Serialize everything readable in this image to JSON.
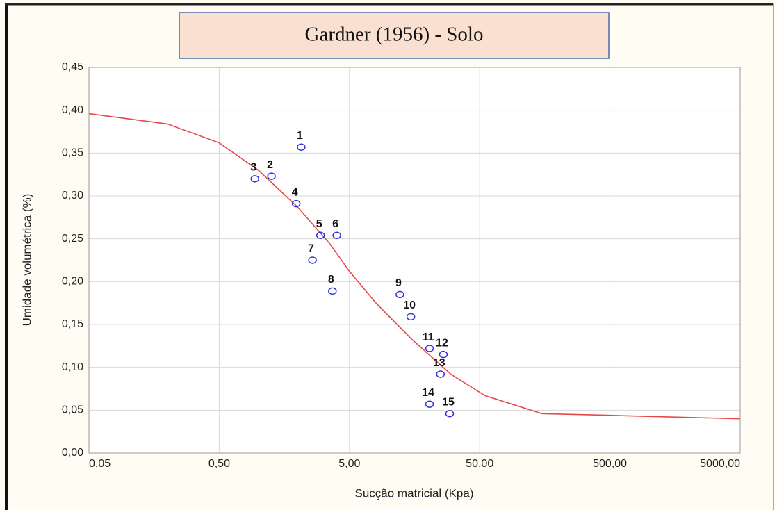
{
  "chart_data": {
    "type": "scatter",
    "title": "Gardner (1956) - Solo",
    "x_label": "Sucção matricial (Kpa)",
    "y_label": "Umidade volumétrica (%)",
    "xscale": "log",
    "xlim": [
      0.05,
      5000
    ],
    "ylim": [
      0,
      0.45
    ],
    "xticks": [
      {
        "value": 0.05,
        "label": "0,05"
      },
      {
        "value": 0.5,
        "label": "0,50"
      },
      {
        "value": 5,
        "label": "5,00"
      },
      {
        "value": 50,
        "label": "50,00"
      },
      {
        "value": 500,
        "label": "500,00"
      },
      {
        "value": 5000,
        "label": "5000,00"
      }
    ],
    "yticks": [
      {
        "value": 0,
        "label": "0,00"
      },
      {
        "value": 0.05,
        "label": "0,05"
      },
      {
        "value": 0.1,
        "label": "0,10"
      },
      {
        "value": 0.15,
        "label": "0,15"
      },
      {
        "value": 0.2,
        "label": "0,20"
      },
      {
        "value": 0.25,
        "label": "0,25"
      },
      {
        "value": 0.3,
        "label": "0,30"
      },
      {
        "value": 0.35,
        "label": "0,35"
      },
      {
        "value": 0.4,
        "label": "0,40"
      },
      {
        "value": 0.45,
        "label": "0,45"
      }
    ],
    "grid": true,
    "series": [
      {
        "type": "scatter",
        "color": "#2f2fe0",
        "labels": [
          "1",
          "2",
          "3",
          "4",
          "5",
          "6",
          "7",
          "8",
          "9",
          "10",
          "11",
          "12",
          "13",
          "14",
          "15"
        ],
        "x": [
          2.13,
          1.26,
          0.94,
          1.95,
          3.0,
          4.0,
          2.6,
          3.7,
          12.2,
          14.8,
          20.6,
          26.3,
          25,
          20.6,
          29.4
        ],
        "values": [
          0.357,
          0.323,
          0.32,
          0.291,
          0.254,
          0.254,
          0.225,
          0.189,
          0.185,
          0.159,
          0.122,
          0.115,
          0.092,
          0.057,
          0.046
        ]
      },
      {
        "type": "line",
        "color": "#e8474a",
        "x": [
          0.05,
          0.2,
          0.5,
          1,
          2,
          3.5,
          5,
          8,
          15,
          30,
          55,
          150,
          500,
          5000
        ],
        "values": [
          0.396,
          0.384,
          0.362,
          0.33,
          0.287,
          0.245,
          0.212,
          0.175,
          0.133,
          0.092,
          0.067,
          0.046,
          0.044,
          0.04
        ]
      }
    ]
  }
}
